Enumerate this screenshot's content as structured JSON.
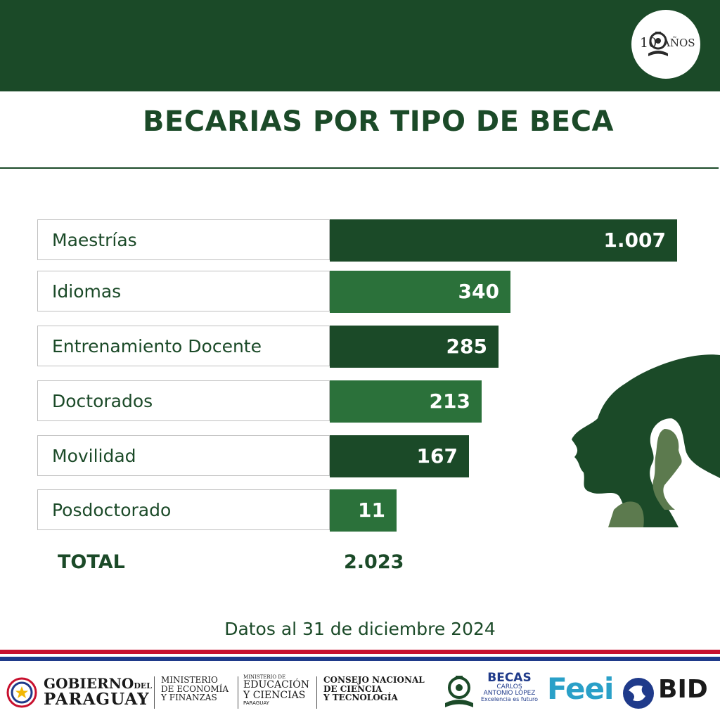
{
  "header": {
    "badge_number": "10",
    "badge_text": "AÑOS",
    "title": "BECARIAS POR TIPO DE BECA"
  },
  "colors": {
    "dark_green": "#1b4a28",
    "light_green": "#2b713a",
    "flag_red": "#c8102e",
    "flag_blue": "#1f3a8a"
  },
  "chart_data": {
    "type": "bar",
    "orientation": "horizontal",
    "title": "BECARIAS POR TIPO DE BECA",
    "categories": [
      "Maestrías",
      "Idiomas",
      "Entrenamiento Docente",
      "Doctorados",
      "Movilidad",
      "Posdoctorado"
    ],
    "values": [
      1007,
      340,
      285,
      213,
      167,
      11
    ],
    "value_labels": [
      "1.007",
      "340",
      "285",
      "213",
      "167",
      "11"
    ],
    "total_label": "TOTAL",
    "total_value": "2.023"
  },
  "footer": {
    "note": "Datos al 31 de diciembre 2024",
    "logos": {
      "gobierno_line1": "GOBIERNO",
      "gobierno_del": "DEL",
      "gobierno_line2": "PARAGUAY",
      "mef_line1": "MINISTERIO",
      "mef_line2": "DE ECONOMÍA",
      "mef_line3": "Y FINANZAS",
      "mec_line1": "MINISTERIO DE",
      "mec_line2": "EDUCACIÓN",
      "mec_line3": "Y CIENCIAS",
      "mec_line4": "PARAGUAY",
      "conacyt_line1": "CONSEJO NACIONAL",
      "conacyt_line2": "DE CIENCIA",
      "conacyt_line3": "Y TECNOLOGÍA",
      "becas_line1": "BECAS",
      "becas_line2": "CARLOS",
      "becas_line3": "ANTONIO LÓPEZ",
      "becas_line4": "Excelencia es futuro",
      "feei": "Feei",
      "bid": "BID"
    }
  }
}
